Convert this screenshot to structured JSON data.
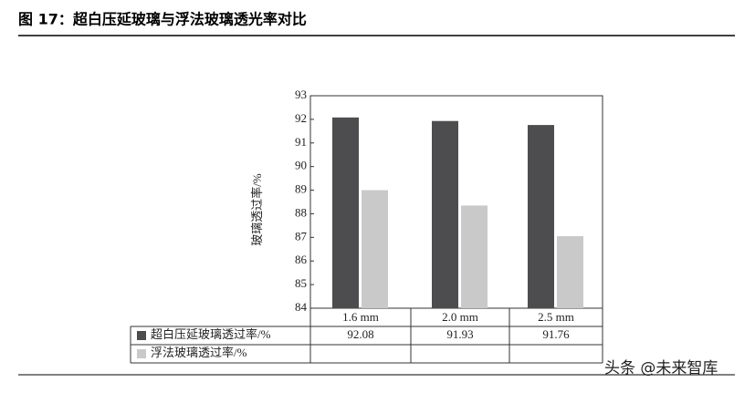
{
  "chart_data": {
    "type": "bar",
    "title": "图 17：超白压延玻璃与浮法玻璃透光率对比",
    "y_label": "玻璃透过率/%",
    "categories": [
      "1.6 mm",
      "2.0 mm",
      "2.5 mm"
    ],
    "series": [
      {
        "name": "超白压延玻璃透过率/%",
        "color": "#4d4d4f",
        "values": [
          92.08,
          91.93,
          91.76
        ]
      },
      {
        "name": "浮法玻璃透过率/%",
        "color": "#c9c9c9",
        "values": [
          89.0,
          88.35,
          87.05
        ]
      }
    ],
    "ylim": [
      84,
      93
    ],
    "yticks": [
      84,
      85,
      86,
      87,
      88,
      89,
      90,
      91,
      92,
      93
    ],
    "watermark": "头条 @未来智库"
  }
}
